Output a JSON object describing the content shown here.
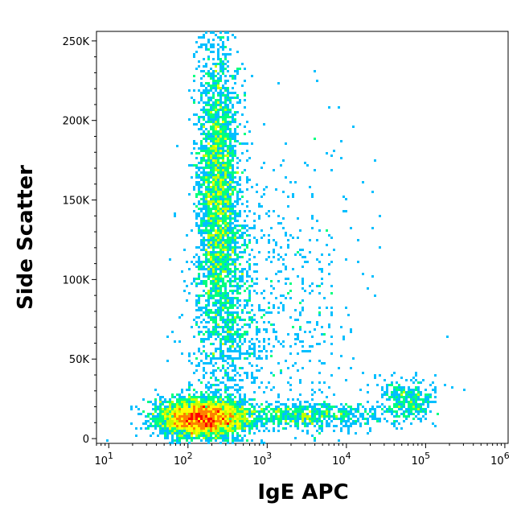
{
  "chart_data": {
    "type": "scatter",
    "title": "",
    "xlabel": "IgE APC",
    "ylabel": "Side Scatter",
    "x_scale": "log",
    "xlim": [
      7,
      1100000
    ],
    "ylim": [
      -3000,
      256000
    ],
    "x_ticks": [
      {
        "value": 10,
        "base": "10",
        "exp": "1"
      },
      {
        "value": 100,
        "base": "10",
        "exp": "2"
      },
      {
        "value": 1000,
        "base": "10",
        "exp": "3"
      },
      {
        "value": 10000,
        "base": "10",
        "exp": "4"
      },
      {
        "value": 100000,
        "base": "10",
        "exp": "5"
      },
      {
        "value": 1000000,
        "base": "10",
        "exp": "6"
      }
    ],
    "y_ticks": [
      {
        "value": 0,
        "label": "0"
      },
      {
        "value": 50000,
        "label": "50K"
      },
      {
        "value": 100000,
        "label": "100K"
      },
      {
        "value": 150000,
        "label": "150K"
      },
      {
        "value": 200000,
        "label": "200K"
      },
      {
        "value": 250000,
        "label": "250K"
      }
    ],
    "density_colormap": [
      "#0000ff",
      "#00bfff",
      "#00ff80",
      "#c0ff00",
      "#ffff00",
      "#ff8000",
      "#ff0000"
    ],
    "populations": [
      {
        "name": "",
        "x_center": 150,
        "y_center": 13000,
        "x_spread_decades": 0.28,
        "y_spread": 6000,
        "weight": 0.42
      },
      {
        "name": "",
        "x_center": 240,
        "y_center": 160000,
        "x_spread_decades": 0.13,
        "y_spread": 45000,
        "weight": 0.3
      },
      {
        "name": "",
        "x_center": 300,
        "y_center": 80000,
        "x_spread_decades": 0.22,
        "y_spread": 40000,
        "weight": 0.1
      },
      {
        "name": "",
        "x_center": 3000,
        "y_center": 14000,
        "x_spread_decades": 0.45,
        "y_spread": 4000,
        "weight": 0.07
      },
      {
        "name": "",
        "x_center": 60000,
        "y_center": 24000,
        "x_spread_decades": 0.18,
        "y_spread": 7000,
        "weight": 0.04
      },
      {
        "name": "",
        "x_center": 1500,
        "y_center": 80000,
        "x_spread_decades": 0.55,
        "y_spread": 55000,
        "weight": 0.07
      }
    ]
  }
}
